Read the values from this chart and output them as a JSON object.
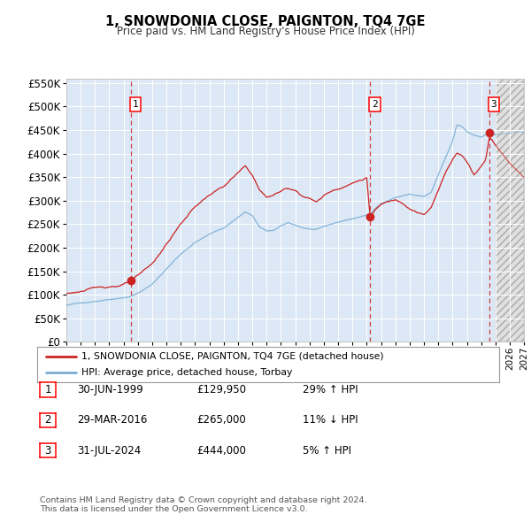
{
  "title": "1, SNOWDONIA CLOSE, PAIGNTON, TQ4 7GE",
  "subtitle": "Price paid vs. HM Land Registry's House Price Index (HPI)",
  "legend_line1": "1, SNOWDONIA CLOSE, PAIGNTON, TQ4 7GE (detached house)",
  "legend_line2": "HPI: Average price, detached house, Torbay",
  "transactions": [
    {
      "num": 1,
      "date": "30-JUN-1999",
      "price": 129950,
      "pct": "29%",
      "dir": "↑",
      "year": 1999.5
    },
    {
      "num": 2,
      "date": "29-MAR-2016",
      "price": 265000,
      "pct": "11%",
      "dir": "↓",
      "year": 2016.25
    },
    {
      "num": 3,
      "date": "31-JUL-2024",
      "price": 444000,
      "pct": "5%",
      "dir": "↑",
      "year": 2024.58
    }
  ],
  "footer1": "Contains HM Land Registry data © Crown copyright and database right 2024.",
  "footer2": "This data is licensed under the Open Government Licence v3.0.",
  "yticks": [
    0,
    50000,
    100000,
    150000,
    200000,
    250000,
    300000,
    350000,
    400000,
    450000,
    500000,
    550000
  ],
  "xlim_start": 1995.0,
  "xlim_end": 2027.0,
  "chart_bg": "#dce8f5",
  "hpi_color": "#7aadd4",
  "price_color": "#cc2222",
  "marker_color": "#cc2222",
  "dashed_color": "#cc2222",
  "future_start": 2025.0
}
